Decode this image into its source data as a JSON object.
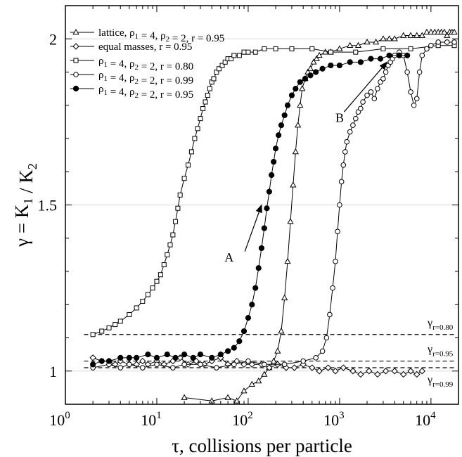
{
  "chart_data": {
    "type": "scatter",
    "title": "",
    "xlabel": "τ, collisions per particle",
    "ylabel": "γ = K1 / K2",
    "xscale": "log",
    "xlim": [
      1,
      20000
    ],
    "ylim": [
      0.9,
      2.1
    ],
    "grid": "horizontal lines at 1, 1.5, 2",
    "legend_position": "top-left",
    "x_ticks": [
      {
        "value": 1,
        "base": "10",
        "exp": "0"
      },
      {
        "value": 10,
        "base": "10",
        "exp": "1"
      },
      {
        "value": 100,
        "base": "10",
        "exp": "2"
      },
      {
        "value": 1000,
        "base": "10",
        "exp": "3"
      },
      {
        "value": 10000,
        "base": "10",
        "exp": "4"
      }
    ],
    "y_ticks": [
      {
        "value": 1,
        "label": "1"
      },
      {
        "value": 1.5,
        "label": "1.5"
      },
      {
        "value": 2,
        "label": "2"
      }
    ],
    "series": [
      {
        "name": "lattice, ρ1 = 4, ρ2 = 2, r = 0.95",
        "marker": "triangle",
        "color": "#000000",
        "x": [
          20,
          40,
          60,
          75,
          90,
          110,
          130,
          150,
          170,
          190,
          210,
          230,
          250,
          270,
          290,
          310,
          330,
          350,
          370,
          390,
          420,
          450,
          480,
          520,
          560,
          600,
          700,
          800,
          1000,
          1300,
          1600,
          2000,
          2500,
          3000,
          3500,
          4000,
          5000,
          6000,
          7000,
          8000,
          9000,
          10000,
          11000,
          12000,
          13000,
          14000,
          15000,
          16000,
          17000,
          18000
        ],
        "y": [
          0.92,
          0.91,
          0.92,
          0.91,
          0.94,
          0.96,
          0.97,
          0.99,
          1.01,
          1.03,
          1.06,
          1.12,
          1.22,
          1.33,
          1.45,
          1.56,
          1.66,
          1.74,
          1.8,
          1.85,
          1.88,
          1.9,
          1.91,
          1.93,
          1.94,
          1.95,
          1.96,
          1.96,
          1.97,
          1.98,
          1.98,
          1.99,
          1.99,
          2.0,
          2.0,
          2.0,
          2.01,
          2.01,
          2.01,
          2.01,
          2.02,
          2.02,
          2.02,
          2.02,
          2.02,
          2.02,
          2.01,
          2.02,
          2.02,
          2.02
        ]
      },
      {
        "name": "equal masses, r = 0.95",
        "marker": "diamond",
        "color": "#000000",
        "x": [
          2,
          2.5,
          3,
          3.5,
          4,
          5,
          6,
          7,
          8,
          10,
          12,
          15,
          18,
          22,
          27,
          33,
          40,
          50,
          60,
          75,
          90,
          110,
          140,
          170,
          210,
          260,
          320,
          400,
          500,
          600,
          750,
          900,
          1100,
          1400,
          1700,
          2100,
          2600,
          3200,
          4000,
          5000,
          6000,
          7000,
          8000
        ],
        "y": [
          1.04,
          1.03,
          1.03,
          1.02,
          1.03,
          1.02,
          1.02,
          1.03,
          1.02,
          1.03,
          1.02,
          1.03,
          1.04,
          1.02,
          1.03,
          1.02,
          1.03,
          1.04,
          1.02,
          1.03,
          1.02,
          1.02,
          1.02,
          1.01,
          1.02,
          1.01,
          1.01,
          1.02,
          1.01,
          1.0,
          1.01,
          1.0,
          1.01,
          1.0,
          0.99,
          1.0,
          0.99,
          1.0,
          1.0,
          0.99,
          1.0,
          0.99,
          1.0
        ]
      },
      {
        "name": "ρ1 = 4, ρ2 = 2, r = 0.80",
        "marker": "square",
        "color": "#000000",
        "x": [
          2,
          2.5,
          3,
          3.5,
          4,
          5,
          6,
          7,
          8,
          9,
          10,
          11,
          12,
          13,
          14,
          15,
          16,
          17,
          18,
          20,
          22,
          24,
          26,
          28,
          30,
          32,
          34,
          36,
          38,
          40,
          42,
          45,
          48,
          52,
          56,
          60,
          65,
          70,
          80,
          90,
          100,
          120,
          150,
          200,
          300,
          500,
          800,
          1500,
          3000,
          6000,
          12000,
          18000
        ],
        "y": [
          1.11,
          1.12,
          1.13,
          1.14,
          1.15,
          1.17,
          1.19,
          1.21,
          1.23,
          1.25,
          1.27,
          1.29,
          1.32,
          1.35,
          1.38,
          1.41,
          1.45,
          1.49,
          1.53,
          1.58,
          1.62,
          1.66,
          1.7,
          1.73,
          1.76,
          1.79,
          1.81,
          1.83,
          1.85,
          1.87,
          1.88,
          1.9,
          1.91,
          1.92,
          1.93,
          1.94,
          1.94,
          1.95,
          1.95,
          1.96,
          1.96,
          1.96,
          1.97,
          1.97,
          1.97,
          1.97,
          1.96,
          1.96,
          1.97,
          1.97,
          1.98,
          1.98
        ]
      },
      {
        "name": "ρ1 = 4, ρ2 = 2, r = 0.99",
        "marker": "circle-open",
        "color": "#000000",
        "x": [
          2,
          3,
          4,
          5,
          7,
          10,
          15,
          20,
          30,
          45,
          70,
          100,
          150,
          250,
          400,
          550,
          650,
          720,
          780,
          840,
          900,
          950,
          1000,
          1050,
          1100,
          1150,
          1200,
          1300,
          1400,
          1500,
          1600,
          1700,
          1800,
          2000,
          2200,
          2400,
          2600,
          2800,
          3000,
          3200,
          3400,
          3600,
          3800,
          4000,
          4500,
          5000,
          5500,
          6000,
          6500,
          7000,
          7500,
          8000,
          9000,
          10000,
          12000,
          15000,
          18000
        ],
        "y": [
          1.01,
          1.02,
          1.01,
          1.02,
          1.01,
          1.02,
          1.01,
          1.02,
          1.02,
          1.01,
          1.02,
          1.03,
          1.02,
          1.02,
          1.03,
          1.04,
          1.06,
          1.1,
          1.17,
          1.25,
          1.33,
          1.42,
          1.5,
          1.57,
          1.62,
          1.66,
          1.69,
          1.72,
          1.74,
          1.76,
          1.78,
          1.79,
          1.81,
          1.83,
          1.84,
          1.82,
          1.85,
          1.87,
          1.88,
          1.9,
          1.92,
          1.93,
          1.94,
          1.95,
          1.96,
          1.95,
          1.9,
          1.84,
          1.8,
          1.82,
          1.9,
          1.95,
          1.97,
          1.98,
          1.99,
          1.99,
          1.99
        ]
      },
      {
        "name": "ρ1 = 4, ρ2 = 2, r = 0.95",
        "marker": "circle-filled",
        "color": "#000000",
        "x": [
          2,
          2.5,
          3,
          4,
          5,
          6,
          8,
          10,
          13,
          16,
          20,
          25,
          30,
          40,
          50,
          60,
          70,
          80,
          90,
          100,
          110,
          120,
          130,
          140,
          150,
          160,
          170,
          180,
          190,
          200,
          215,
          230,
          250,
          270,
          300,
          330,
          370,
          420,
          480,
          550,
          650,
          800,
          1000,
          1300,
          1700,
          2200,
          2800,
          3500,
          4500,
          5500
        ],
        "y": [
          1.02,
          1.03,
          1.03,
          1.04,
          1.04,
          1.04,
          1.05,
          1.04,
          1.05,
          1.04,
          1.05,
          1.04,
          1.05,
          1.04,
          1.05,
          1.06,
          1.07,
          1.09,
          1.12,
          1.16,
          1.2,
          1.25,
          1.31,
          1.37,
          1.43,
          1.49,
          1.54,
          1.59,
          1.63,
          1.67,
          1.71,
          1.74,
          1.77,
          1.8,
          1.83,
          1.85,
          1.87,
          1.88,
          1.89,
          1.9,
          1.91,
          1.92,
          1.92,
          1.93,
          1.93,
          1.94,
          1.94,
          1.95,
          1.95,
          1.95
        ]
      }
    ],
    "reference_lines": [
      {
        "y": 1.11,
        "base": "γ",
        "sub": "r=0.80"
      },
      {
        "y": 1.03,
        "base": "γ",
        "sub": "r=0.95"
      },
      {
        "y": 1.01,
        "base": "γ",
        "sub": "r=0.99"
      }
    ],
    "annotations": [
      {
        "text": "A",
        "tip_x": 140,
        "tip_y": 1.5
      },
      {
        "text": "B",
        "tip_x": 3300,
        "tip_y": 1.93
      }
    ]
  }
}
